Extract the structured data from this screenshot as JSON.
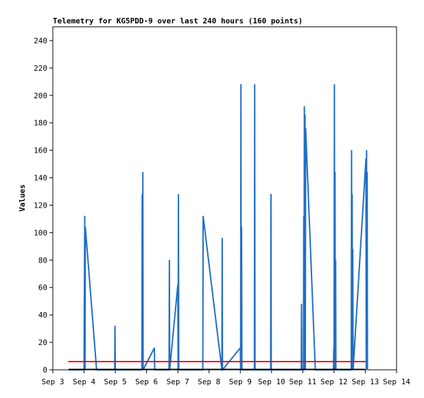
{
  "chart_data": {
    "type": "line",
    "title": "Telemetry for KG5PDD-9 over last 240 hours (160 points)",
    "xlabel": "",
    "ylabel": "Values",
    "x_tick_labels": [
      "Sep 3",
      "Sep 4",
      "Sep 5",
      "Sep 6",
      "Sep 7",
      "Sep 8",
      "Sep 9",
      "Sep 10",
      "Sep 11",
      "Sep 12",
      "Sep 13",
      "Sep 14"
    ],
    "xlim": [
      3,
      14
    ],
    "ylim": [
      0,
      250
    ],
    "y_ticks": [
      0,
      20,
      40,
      60,
      80,
      100,
      120,
      140,
      160,
      180,
      200,
      220,
      240
    ],
    "grid": false,
    "legend": "none",
    "series": [
      {
        "color": "#1f6fc6",
        "points": [
          [
            3.5,
            0
          ],
          [
            4.0,
            0
          ],
          [
            4.02,
            112
          ],
          [
            4.03,
            0
          ],
          [
            4.04,
            104
          ],
          [
            4.4,
            0
          ],
          [
            4.98,
            0
          ],
          [
            4.99,
            32
          ],
          [
            5.0,
            0
          ],
          [
            5.85,
            0
          ],
          [
            5.86,
            128
          ],
          [
            5.87,
            0
          ],
          [
            5.88,
            144
          ],
          [
            5.89,
            0
          ],
          [
            6.25,
            16
          ],
          [
            6.26,
            0
          ],
          [
            6.72,
            0
          ],
          [
            6.73,
            80
          ],
          [
            6.74,
            0
          ],
          [
            7.0,
            62
          ],
          [
            7.01,
            0
          ],
          [
            7.02,
            128
          ],
          [
            7.03,
            0
          ],
          [
            7.8,
            0
          ],
          [
            7.81,
            112
          ],
          [
            8.41,
            0
          ],
          [
            8.42,
            96
          ],
          [
            8.43,
            0
          ],
          [
            9.0,
            16
          ],
          [
            9.01,
            0
          ],
          [
            9.02,
            208
          ],
          [
            9.03,
            0
          ],
          [
            9.04,
            104
          ],
          [
            9.05,
            0
          ],
          [
            9.45,
            0
          ],
          [
            9.46,
            208
          ],
          [
            9.47,
            0
          ],
          [
            9.97,
            0
          ],
          [
            9.98,
            128
          ],
          [
            9.99,
            0
          ],
          [
            10.95,
            0
          ],
          [
            10.96,
            48
          ],
          [
            10.97,
            0
          ],
          [
            11.02,
            0
          ],
          [
            11.03,
            112
          ],
          [
            11.04,
            0
          ],
          [
            11.05,
            192
          ],
          [
            11.06,
            0
          ],
          [
            11.07,
            186
          ],
          [
            11.08,
            0
          ],
          [
            11.09,
            176
          ],
          [
            11.4,
            0
          ],
          [
            11.98,
            0
          ],
          [
            11.99,
            16
          ],
          [
            12.0,
            0
          ],
          [
            12.01,
            208
          ],
          [
            12.02,
            0
          ],
          [
            12.03,
            144
          ],
          [
            12.04,
            0
          ],
          [
            12.05,
            80
          ],
          [
            12.06,
            0
          ],
          [
            12.55,
            0
          ],
          [
            12.56,
            160
          ],
          [
            12.57,
            0
          ],
          [
            12.58,
            128
          ],
          [
            12.59,
            0
          ],
          [
            12.6,
            88
          ],
          [
            12.61,
            0
          ],
          [
            13.02,
            154
          ],
          [
            13.03,
            0
          ],
          [
            13.04,
            160
          ],
          [
            13.05,
            0
          ],
          [
            13.06,
            144
          ],
          [
            13.07,
            0
          ]
        ]
      },
      {
        "color": "#ff0000",
        "points": [
          [
            3.5,
            6
          ],
          [
            13.0,
            6
          ]
        ]
      }
    ]
  }
}
